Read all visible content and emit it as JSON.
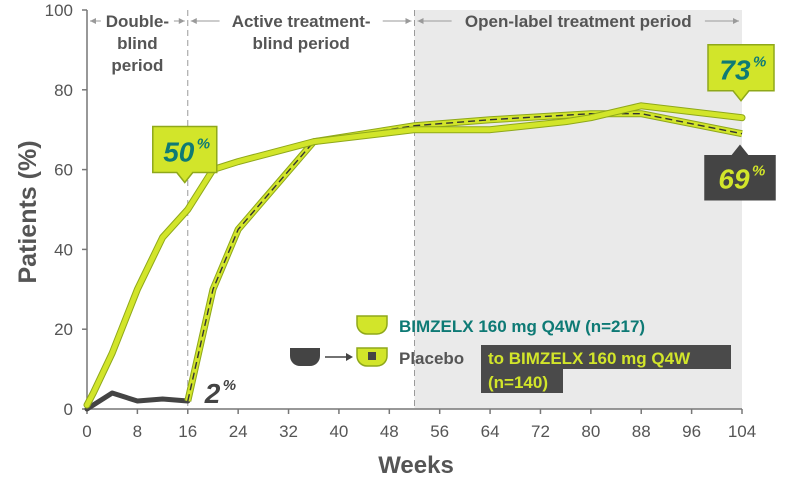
{
  "chart_data": {
    "type": "line",
    "xlabel": "Weeks",
    "ylabel": "Patients (%)",
    "xlim": [
      0,
      104
    ],
    "ylim": [
      0,
      100
    ],
    "x_ticks": [
      "0",
      "8",
      "16",
      "24",
      "32",
      "40",
      "48",
      "56",
      "64",
      "72",
      "80",
      "88",
      "96",
      "104"
    ],
    "y_ticks": [
      "0",
      "20",
      "40",
      "60",
      "80",
      "100"
    ],
    "grid": false,
    "legend_position": "lower-right",
    "periods": [
      {
        "label_lines": [
          "Double-",
          "blind",
          "period"
        ],
        "start": 0,
        "end": 16
      },
      {
        "label_lines": [
          "Active treatment-",
          "blind period"
        ],
        "start": 16,
        "end": 52
      },
      {
        "label_lines": [
          "Open-label treatment period"
        ],
        "start": 52,
        "end": 104
      }
    ],
    "series": [
      {
        "name": "BIMZELX 160 mg Q4W (n=217)",
        "color": "#d2e52a",
        "x": [
          0,
          1,
          4,
          8,
          12,
          16,
          20,
          24,
          36,
          52,
          64,
          76,
          80,
          84,
          88,
          104
        ],
        "y": [
          1,
          4,
          14,
          30,
          43,
          50,
          60,
          62,
          67,
          70,
          70,
          72,
          73,
          74.5,
          76,
          73
        ]
      },
      {
        "name": "Placebo → BIMZELX 160 mg Q4W (n=140)",
        "legend_label": "Placebo",
        "legend_highlight_lines": [
          "to BIMZELX 160 mg Q4W",
          "(n=140)"
        ],
        "placebo_color": "#444444",
        "color": "#d2e52a",
        "placebo_x": [
          0,
          1,
          4,
          8,
          12,
          16
        ],
        "placebo_y": [
          0,
          1,
          4,
          2,
          2.5,
          2
        ],
        "x": [
          16,
          20,
          24,
          36,
          52,
          64,
          80,
          88,
          104
        ],
        "y": [
          2,
          30,
          45,
          67,
          71,
          72.5,
          74,
          74,
          69
        ]
      }
    ],
    "annotations": [
      {
        "text": "50",
        "superscript": "%",
        "x": 16,
        "y": 50,
        "style": "callout-green"
      },
      {
        "text": "2",
        "superscript": "%",
        "x": 16,
        "y": 2,
        "style": "plain-dark"
      },
      {
        "text": "73",
        "superscript": "%",
        "x": 104,
        "y": 73,
        "style": "callout-green"
      },
      {
        "text": "69",
        "superscript": "%",
        "x": 104,
        "y": 69,
        "style": "callout-dark"
      }
    ],
    "colors": {
      "accent": "#d2e52a",
      "accent_border": "#8fa81a",
      "callout_text": "#0e7a75",
      "dark": "#444444",
      "callout_dark_text": "#d2e52a",
      "axis": "#777777",
      "label": "#555555",
      "shade": "#eaeaea"
    }
  }
}
